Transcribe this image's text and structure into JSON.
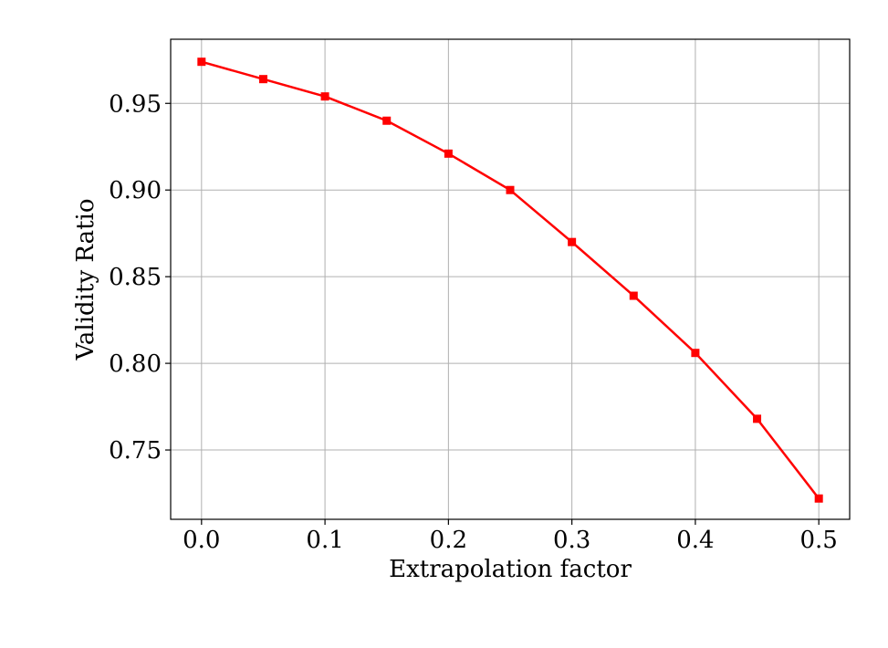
{
  "chart_data": {
    "type": "line",
    "title": "",
    "xlabel": "Extrapolation factor",
    "ylabel": "Validity Ratio",
    "xlim": [
      -0.025,
      0.525
    ],
    "ylim": [
      0.71,
      0.987
    ],
    "xticks": [
      0.0,
      0.1,
      0.2,
      0.3,
      0.4,
      0.5
    ],
    "xtick_labels": [
      "0.0",
      "0.1",
      "0.2",
      "0.3",
      "0.4",
      "0.5"
    ],
    "yticks": [
      0.75,
      0.8,
      0.85,
      0.9,
      0.95
    ],
    "ytick_labels": [
      "0.75",
      "0.80",
      "0.85",
      "0.90",
      "0.95"
    ],
    "grid": true,
    "series": [
      {
        "color": "#ff0000",
        "marker": "square",
        "x": [
          0.0,
          0.05,
          0.1,
          0.15,
          0.2,
          0.25,
          0.3,
          0.35,
          0.4,
          0.45,
          0.5
        ],
        "y": [
          0.974,
          0.964,
          0.954,
          0.94,
          0.921,
          0.9,
          0.87,
          0.839,
          0.806,
          0.768,
          0.722
        ]
      }
    ]
  }
}
